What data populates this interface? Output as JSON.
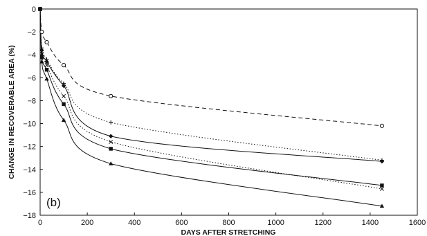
{
  "chart_data": {
    "type": "line",
    "title": "",
    "panel_label": "(b)",
    "xlabel": "DAYS AFTER STRETCHING",
    "ylabel": "CHANGE IN RECOVERABLE AREA (%)",
    "xlim": [
      0,
      1600
    ],
    "ylim": [
      -18,
      0
    ],
    "xticks": [
      0,
      200,
      400,
      600,
      800,
      1000,
      1200,
      1400,
      1600
    ],
    "yticks": [
      0,
      -2,
      -4,
      -6,
      -8,
      -10,
      -12,
      -14,
      -16,
      -18
    ],
    "grid": false,
    "legend": "none",
    "series": [
      {
        "marker": "circle-open",
        "line_style": "dashed",
        "points": [
          [
            0,
            0
          ],
          [
            7,
            -2
          ],
          [
            28,
            -2.9
          ],
          [
            100,
            -4.9
          ],
          [
            300,
            -7.6
          ],
          [
            1450,
            -10.2
          ]
        ]
      },
      {
        "marker": "plus",
        "line_style": "dotted",
        "points": [
          [
            0,
            0
          ],
          [
            7,
            -3.4
          ],
          [
            28,
            -4.4
          ],
          [
            100,
            -6.5
          ],
          [
            300,
            -9.9
          ],
          [
            1450,
            -13.2
          ]
        ]
      },
      {
        "marker": "diamond-filled",
        "line_style": "solid",
        "points": [
          [
            0,
            0
          ],
          [
            7,
            -3.6
          ],
          [
            28,
            -4.6
          ],
          [
            100,
            -6.7
          ],
          [
            300,
            -11.1
          ],
          [
            1450,
            -13.3
          ]
        ]
      },
      {
        "marker": "x",
        "line_style": "dotted",
        "points": [
          [
            0,
            0
          ],
          [
            7,
            -3.9
          ],
          [
            28,
            -4.9
          ],
          [
            100,
            -7.6
          ],
          [
            300,
            -11.6
          ],
          [
            1450,
            -15.7
          ]
        ]
      },
      {
        "marker": "square-filled",
        "line_style": "solid",
        "points": [
          [
            0,
            0
          ],
          [
            7,
            -4.2
          ],
          [
            28,
            -5.3
          ],
          [
            100,
            -8.3
          ],
          [
            300,
            -12.2
          ],
          [
            1450,
            -15.4
          ]
        ]
      },
      {
        "marker": "triangle-filled",
        "line_style": "solid",
        "points": [
          [
            0,
            0
          ],
          [
            7,
            -4.6
          ],
          [
            28,
            -6.1
          ],
          [
            100,
            -9.7
          ],
          [
            300,
            -13.5
          ],
          [
            1450,
            -17.2
          ]
        ]
      }
    ]
  }
}
